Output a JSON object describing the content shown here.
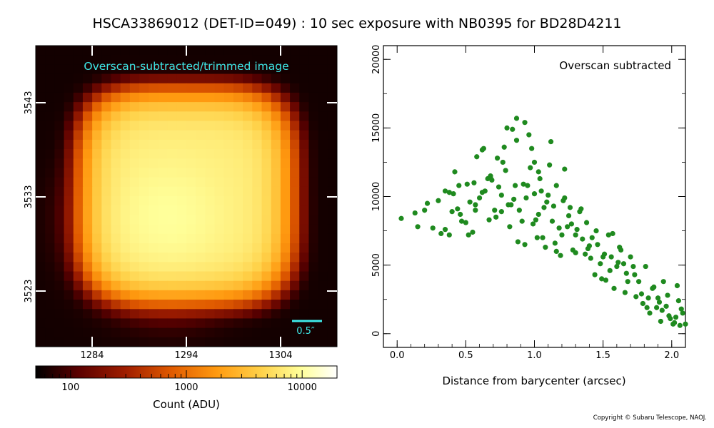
{
  "title": "HSCA33869012 (DET-ID=049) :  10 sec exposure with NB0395 for BD28D4211",
  "copyright": "Copyright © Subaru Telescope, NAOJ.",
  "colors": {
    "annotation": "#3ee8e8",
    "scatter": "#1f8a1f",
    "colormap": [
      "#000000",
      "#5a0000",
      "#a01e00",
      "#e05a00",
      "#ff9a10",
      "#ffd24a",
      "#ffff9a",
      "#ffffff"
    ]
  },
  "chart_data": [
    {
      "type": "heatmap",
      "colormap": "afmhot",
      "label": "Overscan-subtracted/trimmed image",
      "x_ticks": [
        "1284",
        "1294",
        "1304"
      ],
      "y_ticks": [
        "3523",
        "3533",
        "3543"
      ],
      "scale_bar_label": "0.5″",
      "colorbar": {
        "scale": "log",
        "range": [
          50,
          20000
        ],
        "ticks": [
          "100",
          "1000",
          "10000"
        ],
        "label": "Count (ADU)"
      },
      "peak_description": "bright source centered near (1294, 3533)"
    },
    {
      "type": "scatter",
      "label": "Overscan subtracted",
      "xlabel": "Distance from barycenter (arcsec)",
      "ylabel": "",
      "xlim": [
        -0.1,
        2.1
      ],
      "ylim": [
        -1000,
        21000
      ],
      "x_ticks": [
        "0.0",
        "0.5",
        "1.0",
        "1.5",
        "2.0"
      ],
      "y_ticks": [
        "0",
        "5000",
        "10000",
        "15000",
        "20000"
      ],
      "x": [
        0.03,
        0.13,
        0.15,
        0.2,
        0.22,
        0.26,
        0.3,
        0.32,
        0.35,
        0.38,
        0.38,
        0.41,
        0.44,
        0.47,
        0.51,
        0.52,
        0.55,
        0.57,
        0.62,
        0.64,
        0.66,
        0.67,
        0.69,
        0.71,
        0.74,
        0.76,
        0.77,
        0.8,
        0.82,
        0.85,
        0.87,
        0.89,
        0.92,
        0.93,
        0.95,
        0.98,
        1.0,
        1.01,
        1.02,
        1.04,
        1.06,
        1.09,
        1.11,
        1.13,
        1.15,
        1.16,
        1.2,
        1.22,
        1.24,
        1.27,
        1.28,
        1.31,
        1.33,
        1.35,
        1.37,
        1.38,
        1.39,
        1.41,
        1.42,
        1.44,
        1.46,
        1.48,
        1.49,
        1.51,
        1.52,
        1.54,
        1.56,
        1.58,
        1.6,
        1.61,
        1.63,
        1.66,
        1.67,
        1.7,
        1.72,
        1.74,
        1.76,
        1.79,
        1.81,
        1.83,
        1.84,
        1.87,
        1.89,
        1.91,
        1.92,
        1.94,
        1.97,
        1.98,
        2.01,
        2.03,
        2.05,
        2.06,
        2.08,
        2.1,
        0.35,
        0.4,
        0.42,
        0.45,
        0.5,
        0.53,
        0.56,
        0.58,
        0.6,
        0.63,
        0.68,
        0.72,
        0.76,
        0.79,
        0.83,
        0.86,
        0.91,
        0.94,
        0.97,
        1.0,
        1.03,
        1.05,
        1.07,
        1.1,
        1.14,
        1.18,
        1.21,
        1.25,
        1.3,
        1.34,
        1.4,
        1.45,
        1.5,
        1.55,
        1.57,
        1.62,
        1.65,
        1.68,
        1.73,
        1.78,
        1.82,
        1.86,
        1.9,
        1.93,
        1.96,
        1.99,
        2.02,
        2.04,
        2.07,
        0.87,
        0.93,
        0.84,
        1.12,
        0.96,
        0.78,
        1.22,
        0.73,
        0.68,
        1.03,
        0.62,
        1.16,
        0.99,
        0.88,
        1.26,
        0.57,
        1.08,
        1.3,
        0.81,
        0.46,
        1.19
      ],
      "y": [
        8400,
        8800,
        7800,
        9000,
        9500,
        7700,
        9700,
        7300,
        7600,
        10300,
        7200,
        10200,
        9100,
        8200,
        10900,
        7200,
        7400,
        9400,
        13400,
        10400,
        11300,
        8300,
        11200,
        9000,
        10700,
        8900,
        12500,
        15000,
        7800,
        9800,
        14100,
        9000,
        10900,
        6500,
        10800,
        13500,
        12500,
        8300,
        7000,
        11300,
        7000,
        9600,
        12300,
        8200,
        6600,
        10800,
        7200,
        9900,
        7800,
        8000,
        6100,
        7600,
        8900,
        6900,
        5800,
        8100,
        6200,
        5500,
        7000,
        4300,
        6500,
        5100,
        4000,
        5800,
        3900,
        7200,
        5600,
        3300,
        4900,
        5200,
        6100,
        3000,
        4400,
        5600,
        4900,
        2700,
        3800,
        2200,
        4900,
        2600,
        1500,
        3400,
        1900,
        2300,
        900,
        3800,
        2800,
        1300,
        700,
        1200,
        2400,
        600,
        1500,
        700,
        10400,
        8900,
        11800,
        10800,
        8100,
        9600,
        11000,
        12900,
        9900,
        13500,
        11500,
        8500,
        10100,
        11900,
        9400,
        10800,
        8200,
        9900,
        12100,
        10200,
        8700,
        10400,
        9200,
        10100,
        9300,
        7700,
        9700,
        8600,
        7200,
        9100,
        6400,
        7500,
        5600,
        4600,
        7300,
        6300,
        5100,
        3800,
        4300,
        2900,
        1900,
        3300,
        2600,
        1700,
        2000,
        1100,
        800,
        3500,
        1800,
        15700,
        15400,
        14900,
        14000,
        14500,
        13600,
        12000,
        12800,
        11400,
        11800,
        10300,
        6000,
        8000,
        6700,
        9200,
        9000,
        6300,
        5900,
        9400,
        8700,
        5700
      ],
      "peak_description": "peak ~15700 ADU near 0.87 arcsec, declining to ~1000 ADU at 2.1 arcsec"
    }
  ]
}
